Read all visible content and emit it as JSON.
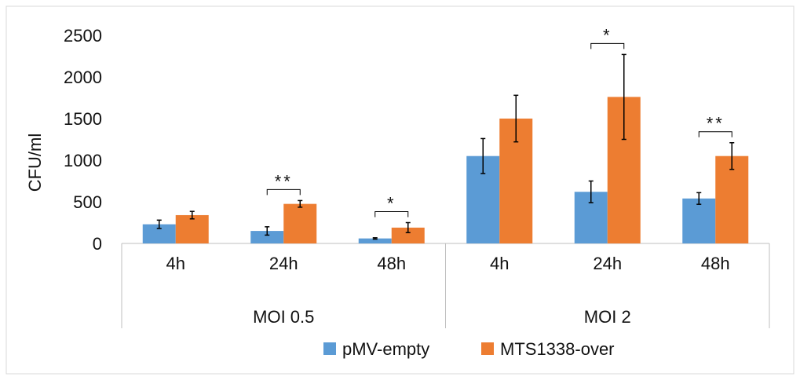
{
  "chart_data": {
    "type": "bar",
    "title": "",
    "xlabel": "",
    "ylabel": "CFU/ml",
    "ylim": [
      0,
      2500
    ],
    "yticks": [
      "0",
      "500",
      "1000",
      "1500",
      "2000",
      "2500"
    ],
    "grid": false,
    "legend_position": "bottom",
    "groups": [
      {
        "label": "MOI 0.5",
        "categories": [
          "4h",
          "24h",
          "48h"
        ]
      },
      {
        "label": "MOI 2",
        "categories": [
          "4h",
          "24h",
          "48h"
        ]
      }
    ],
    "series": [
      {
        "name": "pMV-empty",
        "color": "#5B9BD5",
        "values": [
          230,
          150,
          60,
          1050,
          620,
          540
        ],
        "errors": [
          50,
          50,
          8,
          210,
          130,
          70
        ]
      },
      {
        "name": "MTS1338-over",
        "color": "#ED7D31",
        "values": [
          340,
          475,
          190,
          1500,
          1760,
          1050
        ],
        "errors": [
          45,
          40,
          60,
          280,
          510,
          160
        ]
      }
    ],
    "significance": [
      {
        "index": 1,
        "label": "**"
      },
      {
        "index": 2,
        "label": "*"
      },
      {
        "index": 4,
        "label": "*"
      },
      {
        "index": 5,
        "label": "**"
      }
    ]
  }
}
